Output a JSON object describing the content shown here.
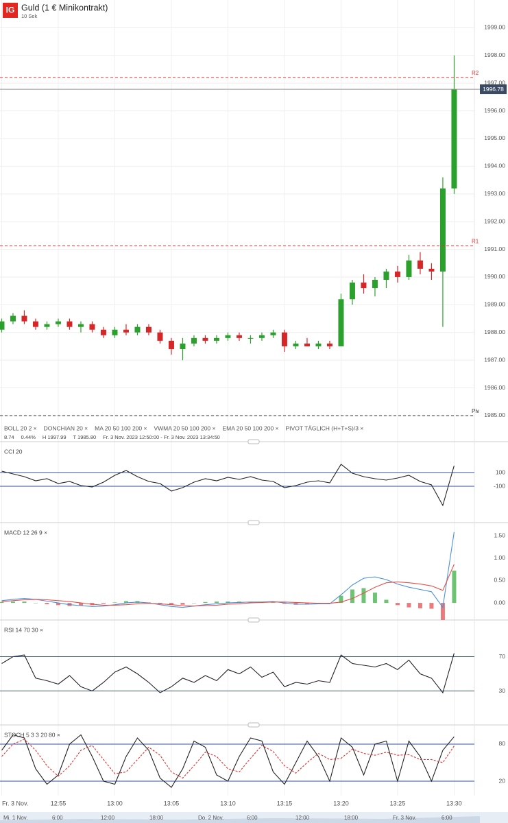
{
  "header": {
    "logo": "IG",
    "title": "Guld (1 € Minikontrakt)",
    "interval": "10 Sek"
  },
  "legend": {
    "indicators": [
      "BOLL 20 2 ×",
      "DONCHIAN 20 ×",
      "MA 20 50 100 200 ×",
      "VWMA 20 50 100 200 ×",
      "EMA 20 50 100 200 ×",
      "PIVOT TÄGLICH (H+T+S)/3 ×"
    ],
    "info": [
      "8.74",
      "0.44%",
      "H 1997.99",
      "T 1985.80",
      "Fr. 3 Nov. 2023 12:50:00 - Fr. 3 Nov. 2023 13:34:50"
    ]
  },
  "navigator": [
    "Mi. 1 Nov.",
    "6:00",
    "12:00",
    "18:00",
    "Do. 2 Nov.",
    "6:00",
    "12:00",
    "18:00",
    "Fr. 3 Nov.",
    "6:00"
  ],
  "chart_data": [
    {
      "type": "candlestick",
      "x": [
        0,
        1,
        2,
        3,
        4,
        5,
        6,
        7,
        8,
        9,
        10,
        11,
        12,
        13,
        14,
        15,
        16,
        17,
        18,
        19,
        20,
        21,
        22,
        23,
        24,
        25,
        26,
        27,
        28,
        29,
        30,
        31,
        32,
        33,
        34,
        35,
        36,
        37,
        38,
        39,
        40
      ],
      "xlim": [
        -0.15,
        41.67
      ],
      "open": [
        1988.1,
        1988.4,
        1988.6,
        1988.4,
        1988.2,
        1988.3,
        1988.4,
        1988.2,
        1988.3,
        1988.1,
        1987.9,
        1988.1,
        1988.0,
        1988.2,
        1988.0,
        1987.7,
        1987.4,
        1987.6,
        1987.8,
        1987.7,
        1987.8,
        1987.9,
        1987.8,
        1987.8,
        1987.9,
        1988.0,
        1987.5,
        1987.6,
        1987.5,
        1987.6,
        1987.5,
        1989.2,
        1989.8,
        1989.6,
        1989.9,
        1990.2,
        1990.0,
        1990.6,
        1990.3,
        1990.2,
        1993.2
      ],
      "high": [
        1988.5,
        1988.7,
        1988.8,
        1988.5,
        1988.4,
        1988.5,
        1988.5,
        1988.4,
        1988.4,
        1988.2,
        1988.2,
        1988.3,
        1988.3,
        1988.3,
        1988.1,
        1987.8,
        1987.8,
        1987.9,
        1987.9,
        1987.9,
        1988.0,
        1988.0,
        1987.9,
        1988.0,
        1988.1,
        1988.1,
        1987.7,
        1987.8,
        1987.7,
        1987.7,
        1989.4,
        1989.9,
        1990.1,
        1990.0,
        1990.3,
        1990.4,
        1990.8,
        1990.9,
        1990.5,
        1993.6,
        1998.0
      ],
      "low": [
        1988.0,
        1988.3,
        1988.3,
        1988.1,
        1988.1,
        1988.2,
        1988.1,
        1988.0,
        1988.0,
        1987.8,
        1987.8,
        1987.9,
        1987.9,
        1987.9,
        1987.6,
        1987.2,
        1987.0,
        1987.5,
        1987.6,
        1987.6,
        1987.7,
        1987.7,
        1987.6,
        1987.7,
        1987.8,
        1987.3,
        1987.4,
        1987.5,
        1987.4,
        1987.4,
        1987.5,
        1989.0,
        1989.4,
        1989.3,
        1989.6,
        1989.8,
        1989.9,
        1990.1,
        1989.9,
        1988.2,
        1993.0
      ],
      "close": [
        1988.4,
        1988.6,
        1988.4,
        1988.2,
        1988.3,
        1988.4,
        1988.2,
        1988.3,
        1988.1,
        1987.9,
        1988.1,
        1988.0,
        1988.2,
        1988.0,
        1987.7,
        1987.4,
        1987.6,
        1987.8,
        1987.7,
        1987.8,
        1987.9,
        1987.8,
        1987.8,
        1987.9,
        1988.0,
        1987.5,
        1987.6,
        1987.5,
        1987.6,
        1987.5,
        1989.2,
        1989.8,
        1989.6,
        1989.9,
        1990.2,
        1990.0,
        1990.6,
        1990.3,
        1990.2,
        1993.2,
        1996.78
      ],
      "colors": {
        "up": "#2ca02c",
        "down": "#d62728"
      },
      "ylim": [
        1984.85,
        2000.0
      ],
      "yticks": [
        {
          "value": 1985,
          "label": "1985.00"
        },
        {
          "value": 1986,
          "label": "1986.00"
        },
        {
          "value": 1987,
          "label": "1987.00"
        },
        {
          "value": 1988,
          "label": "1988.00"
        },
        {
          "value": 1989,
          "label": "1989.00"
        },
        {
          "value": 1990,
          "label": "1990.00"
        },
        {
          "value": 1991,
          "label": "1991.00"
        },
        {
          "value": 1992,
          "label": "1992.00"
        },
        {
          "value": 1993,
          "label": "1993.00"
        },
        {
          "value": 1994,
          "label": "1994.00"
        },
        {
          "value": 1995,
          "label": "1995.00"
        },
        {
          "value": 1996,
          "label": "1996.00"
        },
        {
          "value": 1997,
          "label": "1997.00"
        },
        {
          "value": 1998,
          "label": "1998.00"
        },
        {
          "value": 1999,
          "label": "1999.00"
        }
      ],
      "grid": true,
      "grid_color": "#eeeeee",
      "levels": [
        {
          "name": "R2",
          "value": 1997.2,
          "color": "#e03131"
        },
        {
          "name": "R1",
          "value": 1991.13,
          "color": "#e03131"
        },
        {
          "name": "Piv",
          "value": 1985.0,
          "color": "#333333"
        }
      ],
      "last_price": 1996.78
    },
    {
      "type": "line",
      "title": "CCI 20",
      "series": [
        {
          "color": "#222222",
          "values": [
            120,
            80,
            40,
            -20,
            10,
            -60,
            -30,
            -90,
            -110,
            -40,
            60,
            130,
            40,
            -30,
            -60,
            -170,
            -120,
            -40,
            10,
            -20,
            30,
            0,
            40,
            -10,
            -30,
            -120,
            -90,
            -40,
            -20,
            -50,
            220,
            90,
            40,
            10,
            -10,
            20,
            60,
            -30,
            -80,
            -380,
            200
          ]
        }
      ],
      "ylim": [
        -610,
        490
      ],
      "yticks": [
        100,
        -100
      ],
      "grid": true,
      "grid_color": "#2f4f9e"
    },
    {
      "type": "macd",
      "title": "MACD 12 26 9 ×",
      "series": [
        {
          "color": "#4a90d9",
          "values": [
            0.05,
            0.08,
            0.1,
            0.08,
            0.04,
            0.0,
            -0.04,
            -0.06,
            -0.08,
            -0.07,
            -0.04,
            0.0,
            0.02,
            0.0,
            -0.04,
            -0.08,
            -0.1,
            -0.07,
            -0.04,
            -0.02,
            0.0,
            0.01,
            0.02,
            0.02,
            0.03,
            0.0,
            -0.03,
            -0.03,
            -0.02,
            -0.02,
            0.18,
            0.4,
            0.55,
            0.58,
            0.52,
            0.42,
            0.35,
            0.3,
            0.25,
            -0.1,
            1.58
          ]
        },
        {
          "color": "#e8514a",
          "values": [
            0.03,
            0.05,
            0.07,
            0.08,
            0.07,
            0.05,
            0.03,
            0.0,
            -0.03,
            -0.05,
            -0.05,
            -0.04,
            -0.02,
            -0.01,
            -0.02,
            -0.04,
            -0.06,
            -0.07,
            -0.06,
            -0.05,
            -0.03,
            -0.02,
            0.0,
            0.01,
            0.02,
            0.02,
            0.01,
            0.0,
            -0.01,
            -0.01,
            0.02,
            0.1,
            0.22,
            0.35,
            0.45,
            0.47,
            0.45,
            0.42,
            0.38,
            0.28,
            0.86
          ]
        }
      ],
      "histogram": {
        "colors": {
          "up": "#3cb043",
          "down": "#e05050"
        },
        "values": [
          0.02,
          0.03,
          0.03,
          0.0,
          -0.03,
          -0.05,
          -0.07,
          -0.06,
          -0.05,
          -0.02,
          0.01,
          0.04,
          0.04,
          0.01,
          -0.02,
          -0.04,
          -0.04,
          0.0,
          0.02,
          0.03,
          0.03,
          0.03,
          0.02,
          0.01,
          0.01,
          -0.02,
          -0.04,
          -0.03,
          -0.01,
          -0.01,
          0.16,
          0.3,
          0.33,
          0.23,
          0.07,
          -0.05,
          -0.1,
          -0.12,
          -0.13,
          -0.38,
          0.72
        ]
      },
      "ylim": [
        -0.32,
        1.7
      ],
      "yticks": [
        {
          "value": 1.5,
          "label": "1.50"
        },
        {
          "value": 1.0,
          "label": "1.00"
        },
        {
          "value": 0.5,
          "label": "0.50"
        },
        {
          "value": 0,
          "label": "0.00"
        }
      ],
      "grid": false
    },
    {
      "type": "line",
      "title": "RSI 14 70 30 ×",
      "series": [
        {
          "color": "#222222",
          "values": [
            62,
            70,
            72,
            45,
            42,
            38,
            48,
            35,
            30,
            40,
            52,
            58,
            50,
            40,
            28,
            35,
            45,
            40,
            48,
            42,
            55,
            50,
            58,
            46,
            52,
            35,
            40,
            38,
            42,
            40,
            72,
            62,
            60,
            58,
            62,
            55,
            66,
            50,
            45,
            28,
            74
          ]
        }
      ],
      "ylim": [
        0,
        108
      ],
      "yticks": [
        70,
        30
      ],
      "grid": true,
      "grid_color": "#2f4f9e"
    },
    {
      "type": "line",
      "title": "STOCH 5 3 3 20 80 ×",
      "series": [
        {
          "color": "#222222",
          "values": [
            70,
            95,
            90,
            40,
            15,
            30,
            80,
            95,
            60,
            20,
            15,
            60,
            90,
            70,
            25,
            10,
            40,
            85,
            75,
            30,
            20,
            60,
            90,
            85,
            35,
            15,
            50,
            85,
            60,
            20,
            90,
            75,
            30,
            80,
            85,
            20,
            85,
            60,
            20,
            70,
            92
          ]
        },
        {
          "color": "#e03131",
          "dash": true,
          "values": [
            60,
            80,
            88,
            70,
            45,
            28,
            45,
            70,
            78,
            55,
            32,
            35,
            55,
            75,
            62,
            35,
            25,
            45,
            67,
            60,
            40,
            35,
            57,
            78,
            68,
            45,
            33,
            50,
            65,
            55,
            57,
            72,
            65,
            62,
            67,
            62,
            63,
            55,
            55,
            50,
            77
          ]
        }
      ],
      "ylim": [
        -3.3,
        104.4
      ],
      "yticks": [
        80,
        20
      ],
      "grid": true,
      "grid_color": "#2f4f9e",
      "xticks": [
        {
          "value": 0,
          "label": "Fr. 3 Nov."
        },
        {
          "value": 5,
          "label": "12:55"
        },
        {
          "value": 10,
          "label": "13:00"
        },
        {
          "value": 15,
          "label": "13:05"
        },
        {
          "value": 20,
          "label": "13:10"
        },
        {
          "value": 25,
          "label": "13:15"
        },
        {
          "value": 30,
          "label": "13:20"
        },
        {
          "value": 35,
          "label": "13:25"
        },
        {
          "value": 40,
          "label": "13:30"
        }
      ]
    }
  ]
}
